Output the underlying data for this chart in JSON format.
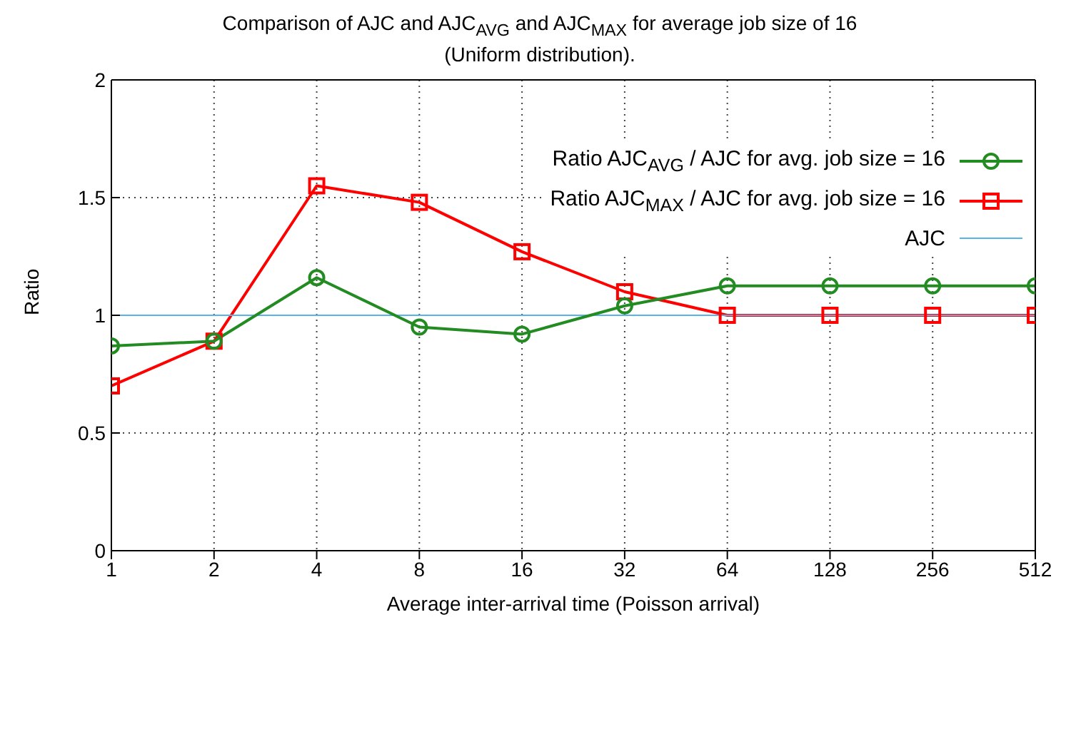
{
  "chart_data": {
    "type": "line",
    "title": "Comparison of AJC and AJC$_{AVG}$ and AJC$_{MAX}$ for average job size of 16",
    "subtitle": "(Uniform distribution).",
    "xlabel": "Average inter-arrival time (Poisson arrival)",
    "ylabel": "Ratio",
    "categories": [
      "1",
      "2",
      "4",
      "8",
      "16",
      "32",
      "64",
      "128",
      "256",
      "512"
    ],
    "series": [
      {
        "name": "Ratio AJC$_{AVG}$ / AJC for avg. job size = 16",
        "color": "#228b22",
        "marker": "circle",
        "values": [
          0.87,
          0.89,
          1.16,
          0.95,
          0.92,
          1.04,
          1.125,
          1.125,
          1.125,
          1.125
        ]
      },
      {
        "name": "Ratio AJC$_{MAX}$ / AJC for avg. job size = 16",
        "color": "#ff0000",
        "marker": "square",
        "values": [
          0.7,
          0.89,
          1.55,
          1.48,
          1.27,
          1.1,
          1.0,
          1.0,
          1.0,
          1.0
        ]
      },
      {
        "name": "AJC",
        "color": "#56b4e9",
        "marker": "none",
        "values": [
          1,
          1,
          1,
          1,
          1,
          1,
          1,
          1,
          1,
          1
        ]
      }
    ],
    "ylim": [
      0,
      2
    ],
    "yticks": [
      0,
      0.5,
      1,
      1.5,
      2
    ],
    "grid": true,
    "legend": "top right"
  }
}
